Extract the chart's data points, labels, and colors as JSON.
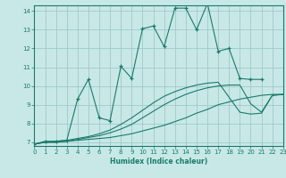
{
  "xlabel": "Humidex (Indice chaleur)",
  "bg_color": "#c8e8e8",
  "grid_color": "#a0c8c8",
  "line_color": "#1a7a6a",
  "xlim": [
    0,
    23
  ],
  "ylim": [
    6.8,
    14.3
  ],
  "yticks": [
    7,
    8,
    9,
    10,
    11,
    12,
    13,
    14
  ],
  "xticks": [
    0,
    1,
    2,
    3,
    4,
    5,
    6,
    7,
    8,
    9,
    10,
    11,
    12,
    13,
    14,
    15,
    16,
    17,
    18,
    19,
    20,
    21,
    22,
    23
  ],
  "lines": [
    {
      "x": [
        0,
        1,
        2,
        3,
        4,
        5,
        6,
        7,
        8,
        9,
        10,
        11,
        12,
        13,
        14,
        15,
        16,
        17,
        18,
        19,
        20,
        21,
        22,
        23
      ],
      "y": [
        6.9,
        7.0,
        7.0,
        7.05,
        7.1,
        7.15,
        7.2,
        7.25,
        7.35,
        7.45,
        7.6,
        7.75,
        7.9,
        8.1,
        8.3,
        8.55,
        8.75,
        9.0,
        9.15,
        9.3,
        9.4,
        9.5,
        9.55,
        9.55
      ],
      "marker": null,
      "dashed": false
    },
    {
      "x": [
        0,
        1,
        2,
        3,
        4,
        5,
        6,
        7,
        8,
        9,
        10,
        11,
        12,
        13,
        14,
        15,
        16,
        17,
        18,
        19,
        20,
        21,
        22,
        23
      ],
      "y": [
        6.9,
        7.0,
        7.0,
        7.05,
        7.15,
        7.25,
        7.35,
        7.5,
        7.7,
        7.95,
        8.3,
        8.65,
        9.0,
        9.3,
        9.55,
        9.75,
        9.9,
        10.0,
        10.05,
        10.05,
        9.05,
        8.6,
        9.5,
        9.55
      ],
      "marker": null,
      "dashed": false
    },
    {
      "x": [
        0,
        1,
        2,
        3,
        4,
        5,
        6,
        7,
        8,
        9,
        10,
        11,
        12,
        13,
        14,
        15,
        16,
        17,
        18,
        19,
        20,
        21,
        22,
        23
      ],
      "y": [
        6.9,
        7.0,
        7.05,
        7.1,
        7.2,
        7.3,
        7.45,
        7.65,
        7.95,
        8.3,
        8.7,
        9.1,
        9.45,
        9.7,
        9.9,
        10.05,
        10.15,
        10.2,
        9.4,
        8.6,
        8.5,
        8.55,
        9.5,
        9.55
      ],
      "marker": null,
      "dashed": false
    },
    {
      "x": [
        0,
        1,
        2,
        3,
        4,
        5,
        6,
        7,
        8,
        9,
        10,
        11,
        12,
        13,
        14,
        15,
        16,
        17,
        18,
        19,
        20,
        21
      ],
      "y": [
        6.9,
        7.05,
        7.05,
        7.1,
        9.3,
        10.35,
        8.3,
        8.15,
        11.05,
        10.4,
        13.05,
        13.2,
        12.1,
        14.15,
        14.15,
        13.0,
        14.4,
        11.85,
        12.0,
        10.4,
        10.35,
        10.35
      ],
      "marker": "+",
      "dashed": false
    }
  ]
}
